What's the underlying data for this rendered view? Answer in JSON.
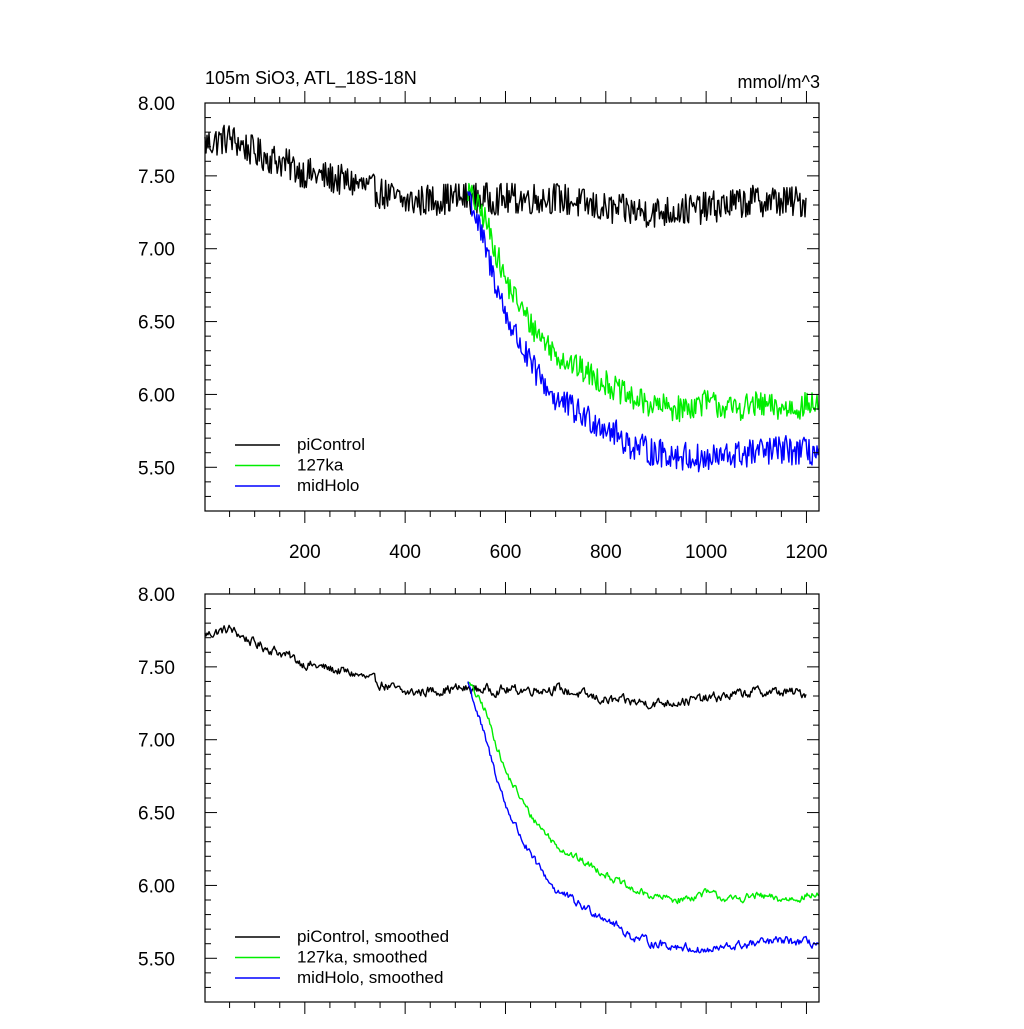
{
  "chart_data": [
    {
      "type": "line",
      "title": "105m SiO3, ATL_18S-18N",
      "units": "mmol/m^3",
      "xlim": [
        1,
        1225
      ],
      "ylim": [
        5.2,
        8.0
      ],
      "xticks": [
        200,
        400,
        600,
        800,
        1000,
        1200
      ],
      "xtick_labels": [
        "200",
        "400",
        "600",
        "800",
        "1000",
        "1200"
      ],
      "yticks": [
        8.0,
        7.5,
        7.0,
        6.5,
        6.0,
        5.5
      ],
      "ytick_labels": [
        "8.00",
        "7.50",
        "7.00",
        "6.50",
        "6.00",
        "5.50"
      ],
      "legend_position": "bottom-left",
      "series": [
        {
          "name": "piControl",
          "color": "#000000",
          "x_start": 1,
          "x_end": 1200,
          "anchor_x": [
            1,
            50,
            100,
            150,
            200,
            300,
            400,
            500,
            600,
            700,
            800,
            900,
            1000,
            1100,
            1200
          ],
          "anchor_y": [
            7.72,
            7.76,
            7.66,
            7.6,
            7.52,
            7.45,
            7.32,
            7.35,
            7.34,
            7.35,
            7.27,
            7.25,
            7.28,
            7.33,
            7.32
          ],
          "noise": 0.11
        },
        {
          "name": "127ka",
          "color": "#00ee00",
          "x_start": 525,
          "x_end": 1225,
          "anchor_x": [
            525,
            560,
            600,
            650,
            700,
            750,
            800,
            850,
            900,
            950,
            1000,
            1050,
            1100,
            1150,
            1225
          ],
          "anchor_y": [
            7.4,
            7.2,
            6.78,
            6.48,
            6.28,
            6.17,
            6.08,
            5.97,
            5.92,
            5.9,
            5.95,
            5.9,
            5.93,
            5.9,
            5.94
          ],
          "noise": 0.09
        },
        {
          "name": "midHolo",
          "color": "#0000ff",
          "x_start": 525,
          "x_end": 1225,
          "anchor_x": [
            525,
            560,
            600,
            650,
            700,
            750,
            800,
            850,
            900,
            950,
            1000,
            1050,
            1100,
            1150,
            1225
          ],
          "anchor_y": [
            7.4,
            7.0,
            6.55,
            6.2,
            5.97,
            5.86,
            5.78,
            5.65,
            5.6,
            5.58,
            5.55,
            5.58,
            5.6,
            5.62,
            5.6
          ],
          "noise": 0.1
        }
      ]
    },
    {
      "type": "line",
      "xlim": [
        1,
        1225
      ],
      "ylim": [
        5.2,
        8.0
      ],
      "xticks": [
        200,
        400,
        600,
        800,
        1000,
        1200
      ],
      "yticks": [
        8.0,
        7.5,
        7.0,
        6.5,
        6.0,
        5.5
      ],
      "ytick_labels": [
        "8.00",
        "7.50",
        "7.00",
        "6.50",
        "6.00",
        "5.50"
      ],
      "legend_position": "bottom-left",
      "series": [
        {
          "name": "piControl, smoothed",
          "color": "#000000",
          "x_start": 1,
          "x_end": 1200,
          "anchor_x": [
            1,
            50,
            100,
            150,
            200,
            300,
            400,
            500,
            600,
            700,
            800,
            900,
            1000,
            1100,
            1200
          ],
          "anchor_y": [
            7.72,
            7.76,
            7.66,
            7.6,
            7.52,
            7.45,
            7.32,
            7.35,
            7.34,
            7.35,
            7.27,
            7.25,
            7.28,
            7.33,
            7.32
          ],
          "noise": 0.045
        },
        {
          "name": "127ka, smoothed",
          "color": "#00ee00",
          "x_start": 525,
          "x_end": 1225,
          "anchor_x": [
            525,
            560,
            600,
            650,
            700,
            750,
            800,
            850,
            900,
            950,
            1000,
            1050,
            1100,
            1150,
            1225
          ],
          "anchor_y": [
            7.4,
            7.2,
            6.78,
            6.48,
            6.28,
            6.17,
            6.08,
            5.97,
            5.92,
            5.9,
            5.95,
            5.9,
            5.93,
            5.9,
            5.94
          ],
          "noise": 0.035
        },
        {
          "name": "midHolo, smoothed",
          "color": "#0000ff",
          "x_start": 525,
          "x_end": 1225,
          "anchor_x": [
            525,
            560,
            600,
            650,
            700,
            750,
            800,
            850,
            900,
            950,
            1000,
            1050,
            1100,
            1150,
            1225
          ],
          "anchor_y": [
            7.4,
            7.0,
            6.55,
            6.2,
            5.97,
            5.86,
            5.78,
            5.65,
            5.6,
            5.58,
            5.55,
            5.58,
            5.6,
            5.62,
            5.6
          ],
          "noise": 0.04
        }
      ]
    }
  ]
}
